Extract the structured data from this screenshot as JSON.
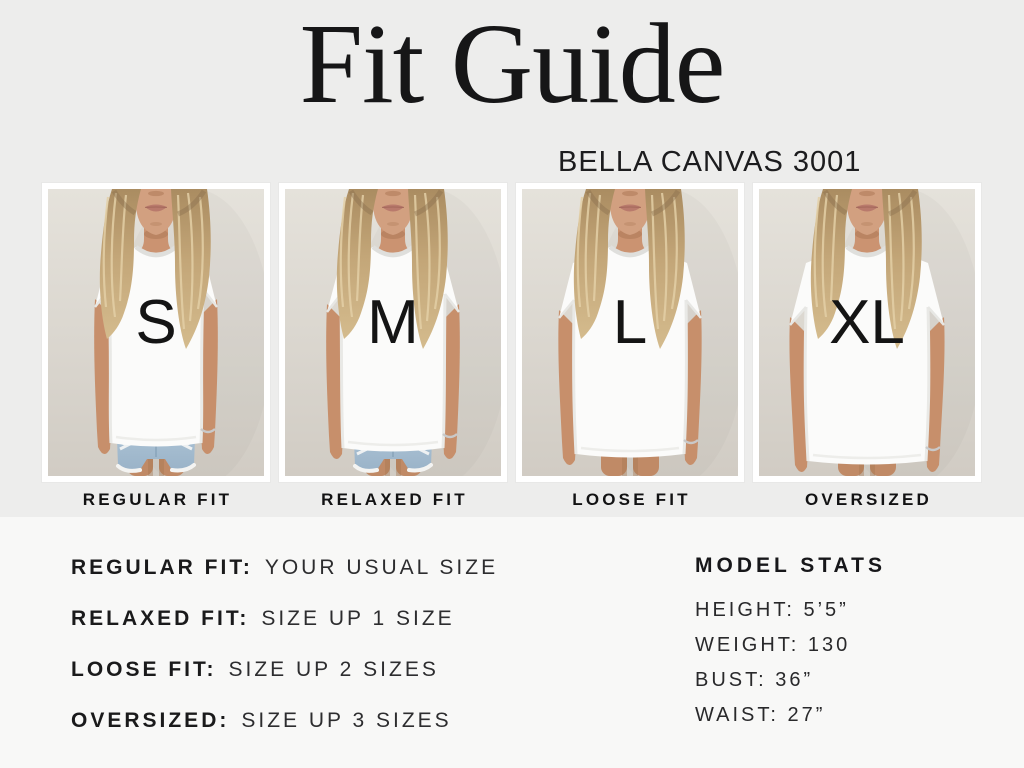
{
  "header": {
    "title": "Fit Guide",
    "subtitle": "BELLA CANVAS 3001"
  },
  "cards": [
    {
      "size": "S",
      "fit_label": "REGULAR FIT"
    },
    {
      "size": "M",
      "fit_label": "RELAXED FIT"
    },
    {
      "size": "L",
      "fit_label": "LOOSE FIT"
    },
    {
      "size": "XL",
      "fit_label": "OVERSIZED"
    }
  ],
  "fit_rules": [
    {
      "label": "REGULAR FIT:",
      "value": "YOUR USUAL SIZE"
    },
    {
      "label": "RELAXED FIT:",
      "value": "SIZE UP 1 SIZE"
    },
    {
      "label": "LOOSE FIT:",
      "value": "SIZE UP 2 SIZES"
    },
    {
      "label": "OVERSIZED:",
      "value": "SIZE UP 3 SIZES"
    }
  ],
  "model_stats": {
    "heading": "MODEL STATS",
    "stats": [
      "HEIGHT: 5’5”",
      "WEIGHT: 130",
      "BUST: 36”",
      "WAIST: 27”"
    ]
  },
  "colors": {
    "top_background": "#ededec",
    "bottom_background": "#f8f8f7",
    "text": "#161617",
    "photo_background": "#d9d8d1",
    "denim": "#a5bfd3"
  }
}
